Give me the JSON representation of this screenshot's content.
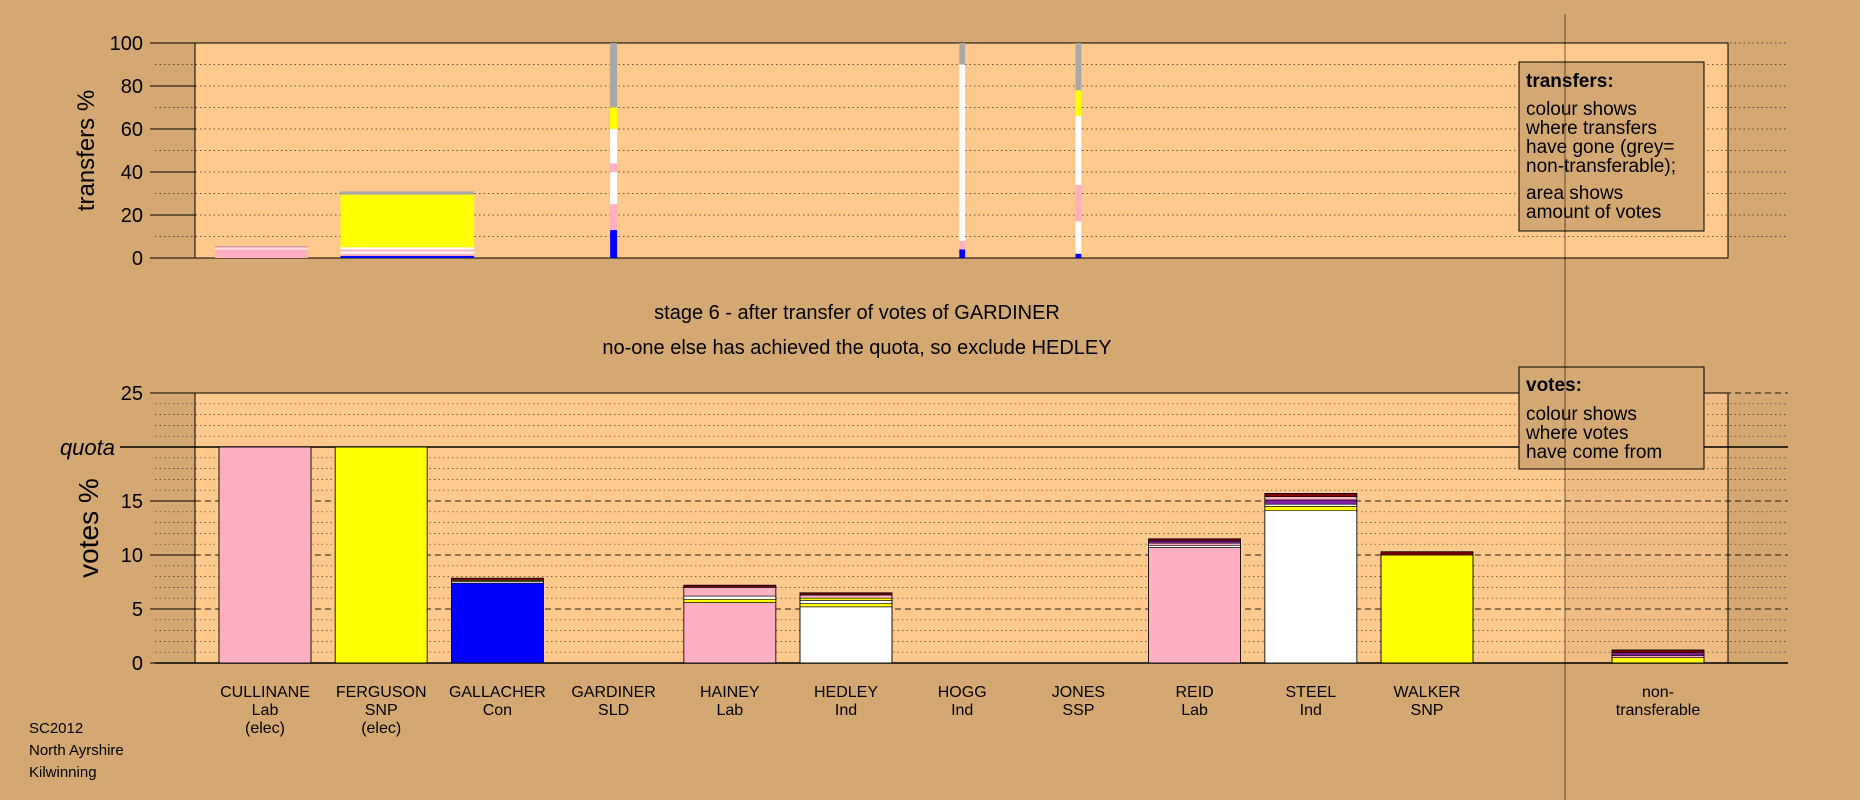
{
  "colors": {
    "background": "#d4a872",
    "panel": "#fec98d",
    "legend_box": "#d4a872",
    "Lab": "#ffb0c0",
    "SNP": "#ffff00",
    "Con": "#0000ff",
    "SLD": "#ffc080",
    "Ind": "#ffffff",
    "SSP": "#ff8080",
    "non": "#a8a8a8",
    "dark": "#800000",
    "purple": "#8020a0"
  },
  "stage_text": "stage 6 - after transfer of votes of GARDINER",
  "status_text": "no-one else has achieved the quota, so exclude HEDLEY",
  "footer": [
    "SC2012",
    "North Ayrshire",
    "Kilwinning"
  ],
  "chart_data": [
    {
      "type": "bar",
      "name": "transfers",
      "ylabel": "transfers %",
      "ylim": [
        0,
        100
      ],
      "yticks": [
        "0",
        "20",
        "40",
        "60",
        "80",
        "100"
      ],
      "legend": {
        "position": "top-right",
        "title": "transfers:",
        "lines1": [
          "colour shows",
          "where transfers",
          "have gone (grey=",
          "non-transferable);"
        ],
        "lines2": [
          "area shows",
          "amount of votes"
        ]
      },
      "transfers": [
        {
          "from": "CULLINANE",
          "to": "HEDLEY",
          "width": 0.8,
          "segments": [
            {
              "party": "Lab",
              "value": 4
            },
            {
              "party": "Ind",
              "value": 0.5
            },
            {
              "party": "Lab",
              "value": 0.7
            },
            {
              "party": "non",
              "value": 0.4
            }
          ]
        },
        {
          "from": "FERGUSON",
          "to": "HEDLEY",
          "width": 1.15,
          "segments": [
            {
              "party": "Con",
              "value": 1
            },
            {
              "party": "Lab",
              "value": 1
            },
            {
              "party": "Ind",
              "value": 1
            },
            {
              "party": "Lab",
              "value": 1
            },
            {
              "party": "Ind",
              "value": 1
            },
            {
              "party": "SNP",
              "value": 24.5
            },
            {
              "party": "non",
              "value": 1.5
            }
          ]
        },
        {
          "from": "GARDINER",
          "to": "",
          "width": 0.06,
          "segments": [
            {
              "party": "Con",
              "value": 13
            },
            {
              "party": "Lab",
              "value": 12
            },
            {
              "party": "Ind",
              "value": 15
            },
            {
              "party": "Lab",
              "value": 4
            },
            {
              "party": "Ind",
              "value": 16
            },
            {
              "party": "SNP",
              "value": 10
            },
            {
              "party": "non",
              "value": 30
            }
          ]
        },
        {
          "from": "HOGG",
          "to": "",
          "width": 0.05,
          "segments": [
            {
              "party": "Con",
              "value": 4
            },
            {
              "party": "Lab",
              "value": 4
            },
            {
              "party": "Ind",
              "value": 82
            },
            {
              "party": "non",
              "value": 10
            }
          ]
        },
        {
          "from": "JONES",
          "to": "",
          "width": 0.05,
          "segments": [
            {
              "party": "Con",
              "value": 2
            },
            {
              "party": "Ind",
              "value": 15
            },
            {
              "party": "Lab",
              "value": 17
            },
            {
              "party": "Ind",
              "value": 32
            },
            {
              "party": "SNP",
              "value": 12
            },
            {
              "party": "non",
              "value": 22
            }
          ]
        }
      ]
    },
    {
      "type": "bar",
      "name": "votes",
      "ylabel": "votes %",
      "ylim": [
        0,
        25
      ],
      "yticks": [
        "0",
        "5",
        "10",
        "15",
        "20",
        "25"
      ],
      "quota": 20,
      "quota_label": "quota",
      "legend": {
        "position": "top-right",
        "title": "votes:",
        "lines1": [
          "colour shows",
          "where votes",
          "have come from"
        ]
      },
      "candidates": [
        {
          "name": "CULLINANE",
          "party": "Lab",
          "note": "(elec)",
          "segments": [
            {
              "party": "Lab",
              "value": 20
            }
          ]
        },
        {
          "name": "FERGUSON",
          "party": "SNP",
          "note": "(elec)",
          "segments": [
            {
              "party": "SNP",
              "value": 20
            }
          ]
        },
        {
          "name": "GALLACHER",
          "party": "Con",
          "note": "",
          "segments": [
            {
              "party": "Con",
              "value": 7.4
            },
            {
              "party": "Ind",
              "value": 0.15
            },
            {
              "party": "SNP",
              "value": 0.1
            },
            {
              "party": "dark",
              "value": 0.2
            }
          ]
        },
        {
          "name": "GARDINER",
          "party": "SLD",
          "note": "",
          "segments": []
        },
        {
          "name": "HAINEY",
          "party": "Lab",
          "note": "",
          "segments": [
            {
              "party": "Lab",
              "value": 5.6
            },
            {
              "party": "SNP",
              "value": 0.3
            },
            {
              "party": "Ind",
              "value": 0.3
            },
            {
              "party": "Lab",
              "value": 0.8
            },
            {
              "party": "dark",
              "value": 0.2
            }
          ]
        },
        {
          "name": "HEDLEY",
          "party": "Ind",
          "note": "",
          "segments": [
            {
              "party": "Ind",
              "value": 5.2
            },
            {
              "party": "SNP",
              "value": 0.3
            },
            {
              "party": "Ind",
              "value": 0.3
            },
            {
              "party": "SNP",
              "value": 0.2
            },
            {
              "party": "Lab",
              "value": 0.3
            },
            {
              "party": "dark",
              "value": 0.2
            }
          ]
        },
        {
          "name": "HOGG",
          "party": "Ind",
          "note": "",
          "segments": []
        },
        {
          "name": "JONES",
          "party": "SSP",
          "note": "",
          "segments": []
        },
        {
          "name": "REID",
          "party": "Lab",
          "note": "",
          "segments": [
            {
              "party": "Lab",
              "value": 10.7
            },
            {
              "party": "Ind",
              "value": 0.2
            },
            {
              "party": "Lab",
              "value": 0.2
            },
            {
              "party": "purple",
              "value": 0.2
            },
            {
              "party": "dark",
              "value": 0.2
            }
          ]
        },
        {
          "name": "STEEL",
          "party": "Ind",
          "note": "",
          "segments": [
            {
              "party": "Ind",
              "value": 14.1
            },
            {
              "party": "SNP",
              "value": 0.4
            },
            {
              "party": "Ind",
              "value": 0.2
            },
            {
              "party": "purple",
              "value": 0.4
            },
            {
              "party": "Lab",
              "value": 0.3
            },
            {
              "party": "dark",
              "value": 0.3
            }
          ]
        },
        {
          "name": "WALKER",
          "party": "SNP",
          "note": "",
          "segments": [
            {
              "party": "SNP",
              "value": 10
            },
            {
              "party": "dark",
              "value": 0.3
            }
          ]
        }
      ],
      "non_transferable": {
        "label1": "non-",
        "label2": "transferable",
        "segments": [
          {
            "party": "SNP",
            "value": 0.5
          },
          {
            "party": "Lab",
            "value": 0.2
          },
          {
            "party": "purple",
            "value": 0.25
          },
          {
            "party": "dark",
            "value": 0.25
          }
        ]
      }
    }
  ]
}
